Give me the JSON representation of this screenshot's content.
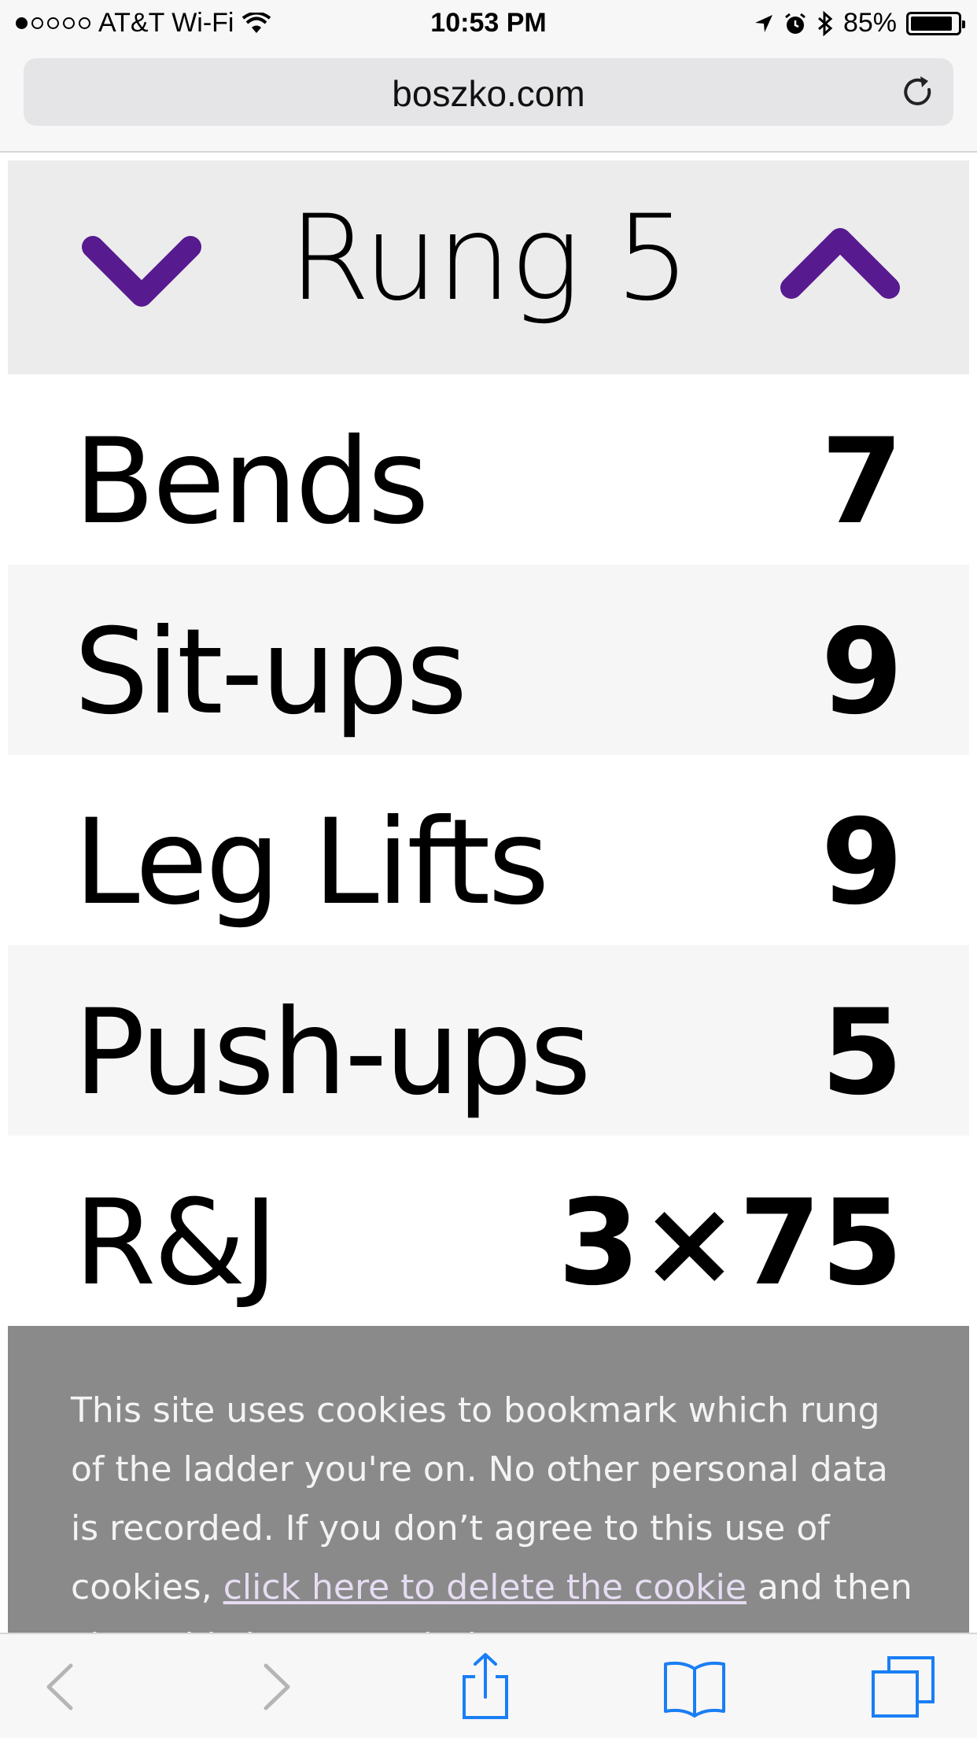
{
  "status_bar": {
    "carrier": "AT&T Wi-Fi",
    "time": "10:53 PM",
    "battery": "85%",
    "battery_level": 0.85,
    "icons": [
      "signal-dots-icon",
      "wifi-icon",
      "location-arrow-icon",
      "alarm-icon",
      "bluetooth-icon",
      "battery-icon"
    ]
  },
  "browser": {
    "url": "boszko.com",
    "reload_icon": "reload-icon"
  },
  "rung": {
    "title": "Rung 5",
    "down_icon": "chevron-down-icon",
    "up_icon": "chevron-up-icon",
    "accent_color": "#571a8f"
  },
  "exercises": [
    {
      "label": "Bends",
      "value": "7"
    },
    {
      "label": "Sit-ups",
      "value": "9"
    },
    {
      "label": "Leg Lifts",
      "value": "9"
    },
    {
      "label": "Push-ups",
      "value": "5"
    },
    {
      "label": "R&J",
      "value": "3×75"
    }
  ],
  "cookie_banner": {
    "text_before": "This site uses cookies to bookmark which rung of the ladder you're on. No other personal data is recorded. If you don’t agree to this use of cookies, ",
    "link_text": "click here to delete the cookie",
    "text_after": " and then close this browser window."
  },
  "toolbar": {
    "icons": [
      "back-icon",
      "forward-icon",
      "share-icon",
      "bookmarks-icon",
      "tabs-icon"
    ],
    "active_color": "#1a7ef5",
    "disabled_color": "#b5b5b5"
  }
}
